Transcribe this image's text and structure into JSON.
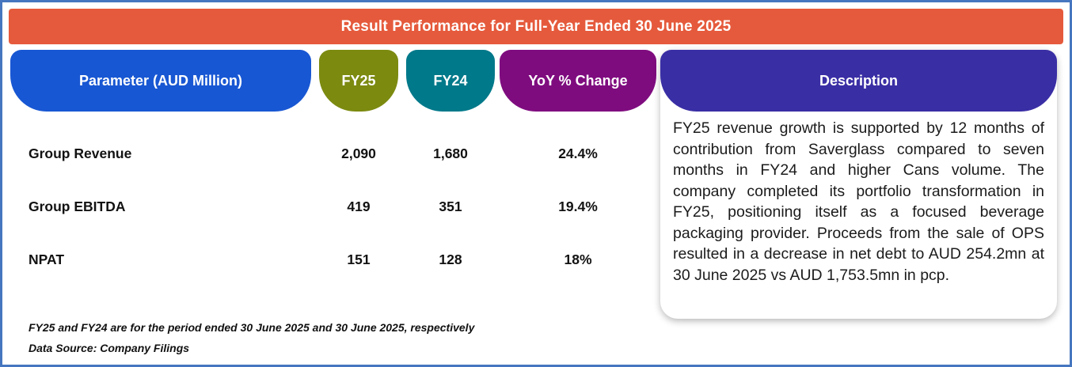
{
  "title": "Result Performance for Full-Year Ended 30 June 2025",
  "columns": {
    "parameter": "Parameter (AUD Million)",
    "fy25": "FY25",
    "fy24": "FY24",
    "yoy": "YoY % Change",
    "description": "Description"
  },
  "rows": [
    {
      "parameter": "Group Revenue",
      "fy25": "2,090",
      "fy24": "1,680",
      "yoy": "24.4%"
    },
    {
      "parameter": "Group EBITDA",
      "fy25": "419",
      "fy24": "351",
      "yoy": "19.4%"
    },
    {
      "parameter": "NPAT",
      "fy25": "151",
      "fy24": "128",
      "yoy": "18%"
    }
  ],
  "description_text": "FY25 revenue growth is supported by 12 months of contribution from Saverglass compared to seven months in FY24 and higher Cans volume. The company completed its portfolio transformation in FY25, positioning itself as a focused beverage packaging provider. Proceeds from the sale of OPS resulted in a decrease in net debt to AUD 254.2mn at 30 June 2025 vs AUD 1,753.5mn in pcp.",
  "footnotes": {
    "period_note": "FY25 and FY24 are for the period ended 30 June 2025 and 30 June 2025, respectively",
    "source_note": "Data Source: Company Filings"
  },
  "colors": {
    "title_bar": "#e55a3c",
    "parameter_header": "#1857d3",
    "fy25_header": "#7c8a10",
    "fy24_header": "#00798a",
    "yoy_header": "#7f0c7f",
    "description_header": "#3a2ea5",
    "frame_border": "#4576bf"
  },
  "chart_data": {
    "type": "table",
    "title": "Result Performance for Full-Year Ended 30 June 2025",
    "columns": [
      "Parameter (AUD Million)",
      "FY25",
      "FY24",
      "YoY % Change"
    ],
    "rows": [
      [
        "Group Revenue",
        2090,
        1680,
        "24.4%"
      ],
      [
        "Group EBITDA",
        419,
        351,
        "19.4%"
      ],
      [
        "NPAT",
        151,
        128,
        "18%"
      ]
    ],
    "notes": [
      "FY25 and FY24 are for the period ended 30 June 2025 and 30 June 2025, respectively",
      "Data Source: Company Filings"
    ],
    "description": "FY25 revenue growth is supported by 12 months of contribution from Saverglass compared to seven months in FY24 and higher Cans volume. The company completed its portfolio transformation in FY25, positioning itself as a focused beverage packaging provider. Proceeds from the sale of OPS resulted in a decrease in net debt to AUD 254.2mn at 30 June 2025 vs AUD 1,753.5mn in pcp."
  }
}
